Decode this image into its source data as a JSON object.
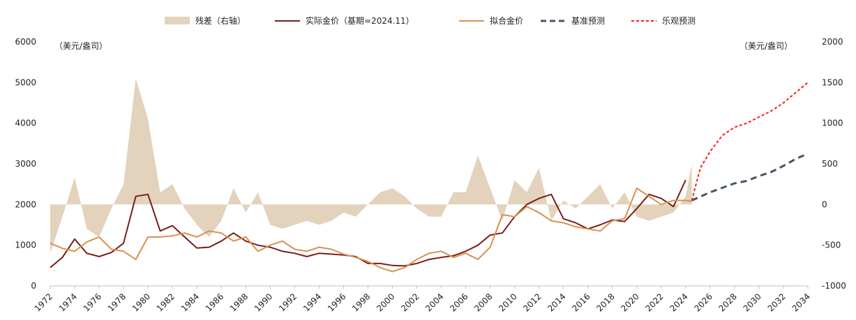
{
  "chart_data": {
    "type": "line",
    "title": "",
    "y_left": {
      "unit_label": "（美元/盎司）",
      "range": [
        0,
        6000
      ],
      "ticks": [
        0,
        1000,
        2000,
        3000,
        4000,
        5000,
        6000
      ]
    },
    "y_right": {
      "unit_label": "（美元/盎司）",
      "range": [
        -1000,
        2000
      ],
      "ticks": [
        -1000,
        -500,
        0,
        500,
        1000,
        1500,
        2000
      ]
    },
    "x_ticks": [
      "1972",
      "1974",
      "1976",
      "1978",
      "1980",
      "1982",
      "1984",
      "1986",
      "1988",
      "1990",
      "1992",
      "1994",
      "1996",
      "1998",
      "2000",
      "2002",
      "2004",
      "2006",
      "2008",
      "2010",
      "2012",
      "2014",
      "2016",
      "2018",
      "2020",
      "2022",
      "2024",
      "2026",
      "2028",
      "2030",
      "2032",
      "2034"
    ],
    "x_range": [
      1972,
      2034
    ],
    "legend": [
      {
        "key": "residual",
        "label": "残差（右轴）",
        "style": "area",
        "color": "#e3d3bc"
      },
      {
        "key": "actual",
        "label": "实际金价（基期=2024.11）",
        "style": "solid",
        "color": "#7a1c1c"
      },
      {
        "key": "fitted",
        "label": "拟合金价",
        "style": "solid",
        "color": "#d8914d"
      },
      {
        "key": "baseline",
        "label": "基准预测",
        "style": "dashed",
        "color": "#44546a"
      },
      {
        "key": "optimistic",
        "label": "乐观预测",
        "style": "dotted",
        "color": "#ff1a1a"
      }
    ],
    "series": [
      {
        "key": "residual",
        "axis": "right",
        "x": [
          1972,
          1973,
          1974,
          1975,
          1976,
          1977,
          1978,
          1979,
          1980,
          1981,
          1982,
          1983,
          1984,
          1985,
          1986,
          1987,
          1988,
          1989,
          1990,
          1991,
          1992,
          1993,
          1994,
          1995,
          1996,
          1997,
          1998,
          1999,
          2000,
          2001,
          2002,
          2003,
          2004,
          2005,
          2006,
          2007,
          2008,
          2009,
          2010,
          2011,
          2012,
          2013,
          2014,
          2015,
          2016,
          2017,
          2018,
          2019,
          2020,
          2021,
          2022,
          2023,
          2024,
          2024.5
        ],
        "values": [
          -600,
          -150,
          330,
          -300,
          -400,
          -50,
          250,
          1550,
          1050,
          150,
          250,
          -50,
          -250,
          -400,
          -200,
          200,
          -100,
          150,
          -250,
          -300,
          -250,
          -200,
          -250,
          -200,
          -100,
          -150,
          0,
          150,
          200,
          100,
          -50,
          -150,
          -150,
          150,
          150,
          600,
          200,
          -200,
          300,
          150,
          450,
          -200,
          50,
          -50,
          100,
          250,
          -50,
          150,
          -150,
          -200,
          -150,
          -100,
          100,
          500
        ]
      },
      {
        "key": "actual",
        "axis": "left",
        "x": [
          1972,
          1973,
          1974,
          1975,
          1976,
          1977,
          1978,
          1979,
          1980,
          1981,
          1982,
          1983,
          1984,
          1985,
          1986,
          1987,
          1988,
          1989,
          1990,
          1991,
          1992,
          1993,
          1994,
          1995,
          1996,
          1997,
          1998,
          1999,
          2000,
          2001,
          2002,
          2003,
          2004,
          2005,
          2006,
          2007,
          2008,
          2009,
          2010,
          2011,
          2012,
          2013,
          2014,
          2015,
          2016,
          2017,
          2018,
          2019,
          2020,
          2021,
          2022,
          2023,
          2024
        ],
        "values": [
          450,
          700,
          1150,
          800,
          720,
          820,
          1050,
          2200,
          2250,
          1350,
          1480,
          1200,
          930,
          950,
          1100,
          1300,
          1100,
          1000,
          950,
          850,
          800,
          720,
          800,
          780,
          760,
          720,
          550,
          550,
          500,
          490,
          550,
          650,
          700,
          740,
          850,
          1000,
          1250,
          1300,
          1700,
          2000,
          2150,
          2250,
          1650,
          1550,
          1400,
          1500,
          1620,
          1580,
          1900,
          2250,
          2150,
          1950,
          2600
        ]
      },
      {
        "key": "fitted",
        "axis": "left",
        "x": [
          1972,
          1973,
          1974,
          1975,
          1976,
          1977,
          1978,
          1979,
          1980,
          1981,
          1982,
          1983,
          1984,
          1985,
          1986,
          1987,
          1988,
          1989,
          1990,
          1991,
          1992,
          1993,
          1994,
          1995,
          1996,
          1997,
          1998,
          1999,
          2000,
          2001,
          2002,
          2003,
          2004,
          2005,
          2006,
          2007,
          2008,
          2009,
          2010,
          2011,
          2012,
          2013,
          2014,
          2015,
          2016,
          2017,
          2018,
          2019,
          2020,
          2021,
          2022,
          2023,
          2024,
          2024.5
        ],
        "values": [
          1050,
          920,
          850,
          1080,
          1200,
          900,
          850,
          650,
          1200,
          1200,
          1230,
          1300,
          1200,
          1350,
          1300,
          1100,
          1200,
          850,
          1000,
          1100,
          900,
          850,
          950,
          900,
          780,
          700,
          600,
          450,
          350,
          450,
          650,
          800,
          850,
          700,
          800,
          650,
          950,
          1750,
          1700,
          1950,
          1800,
          1600,
          1550,
          1450,
          1400,
          1350,
          1600,
          1650,
          2400,
          2200,
          2000,
          2100,
          2100,
          2080
        ]
      },
      {
        "key": "baseline",
        "axis": "left",
        "x": [
          2024.5,
          2026,
          2028,
          2029,
          2030,
          2031,
          2032,
          2033,
          2034
        ],
        "values": [
          2100,
          2300,
          2520,
          2580,
          2700,
          2800,
          2950,
          3120,
          3250
        ]
      },
      {
        "key": "optimistic",
        "axis": "left",
        "x": [
          2024.5,
          2025.2,
          2026,
          2027,
          2028,
          2029,
          2030,
          2031,
          2032,
          2033,
          2034
        ],
        "values": [
          2100,
          2900,
          3300,
          3700,
          3900,
          4000,
          4150,
          4300,
          4500,
          4750,
          5000
        ]
      }
    ]
  }
}
